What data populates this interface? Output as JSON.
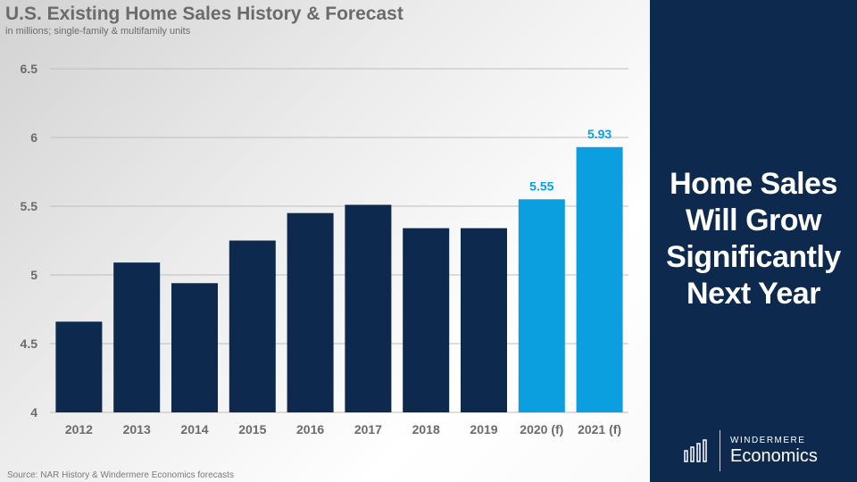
{
  "chart_data": {
    "type": "bar",
    "title": "U.S. Existing Home Sales History & Forecast",
    "subtitle": "in millions; single-family & multifamily units",
    "xlabel": "",
    "ylabel": "",
    "ylim": [
      4,
      6.5
    ],
    "yticks": [
      4,
      4.5,
      5,
      5.5,
      6,
      6.5
    ],
    "ytick_labels": [
      "4",
      "4.5",
      "5",
      "5.5",
      "6",
      "6.5"
    ],
    "grid": true,
    "categories": [
      "2012",
      "2013",
      "2014",
      "2015",
      "2016",
      "2017",
      "2018",
      "2019",
      "2020 (f)",
      "2021 (f)"
    ],
    "values": [
      4.66,
      5.09,
      4.94,
      5.25,
      5.45,
      5.51,
      5.34,
      5.34,
      5.55,
      5.93
    ],
    "forecast": [
      false,
      false,
      false,
      false,
      false,
      false,
      false,
      false,
      true,
      true
    ],
    "data_labels": [
      "",
      "",
      "",
      "",
      "",
      "",
      "",
      "",
      "5.55",
      "5.93"
    ],
    "colors": {
      "history": "#0d2a4e",
      "forecast": "#0b9fe0",
      "label": "#0b9fe0",
      "grid": "#bdbdbd",
      "axis_text": "#6b6b6b"
    }
  },
  "source": "Source: NAR History & Windermere Economics forecasts",
  "headline": [
    "Home Sales",
    "Will Grow",
    "Significantly",
    "Next Year"
  ],
  "logo": {
    "small": "WINDERMERE",
    "big": "Economics",
    "icon": "bar-chart-icon"
  },
  "colors": {
    "panel": "#0d2a4e"
  }
}
